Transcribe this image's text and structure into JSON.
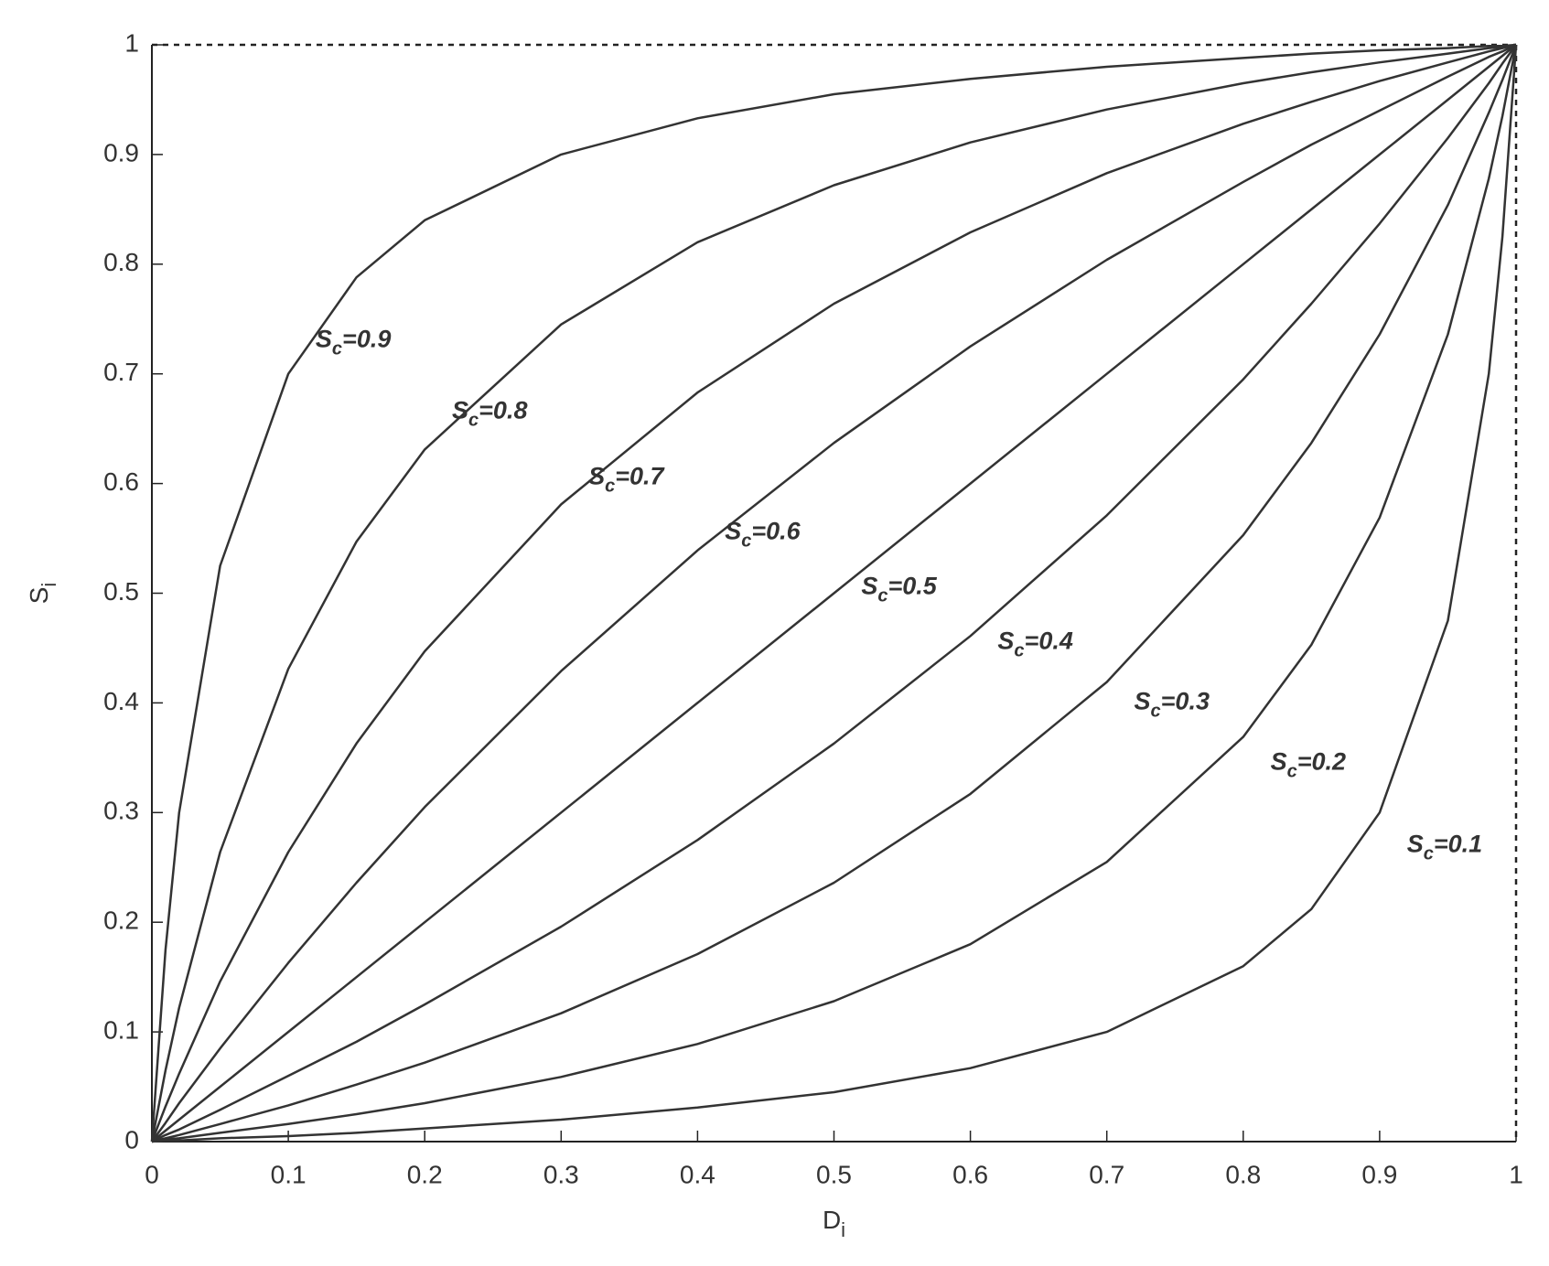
{
  "chart_data": {
    "type": "line",
    "xlabel": "Di",
    "ylabel": "Si",
    "x": [
      0,
      0.01,
      0.02,
      0.05,
      0.1,
      0.15,
      0.2,
      0.3,
      0.4,
      0.5,
      0.6,
      0.7,
      0.8,
      0.85,
      0.9,
      0.95,
      0.98,
      0.99,
      1
    ],
    "series": [
      {
        "name": "Sc=0.9",
        "color": "#333333",
        "values": [
          0,
          0.175,
          0.3,
          0.525,
          0.7,
          0.788,
          0.84,
          0.9,
          0.933,
          0.955,
          0.969,
          0.98,
          0.988,
          0.992,
          0.995,
          0.997,
          0.999,
          0.999,
          1
        ]
      },
      {
        "name": "Sc=0.8",
        "color": "#333333",
        "values": [
          0,
          0.065,
          0.122,
          0.264,
          0.431,
          0.547,
          0.631,
          0.745,
          0.82,
          0.872,
          0.911,
          0.941,
          0.965,
          0.975,
          0.984,
          0.992,
          0.997,
          0.998,
          1
        ]
      },
      {
        "name": "Sc=0.7",
        "color": "#333333",
        "values": [
          0,
          0.032,
          0.062,
          0.146,
          0.264,
          0.363,
          0.447,
          0.581,
          0.683,
          0.764,
          0.829,
          0.883,
          0.928,
          0.948,
          0.967,
          0.984,
          0.994,
          0.997,
          1
        ]
      },
      {
        "name": "Sc=0.6",
        "color": "#333333",
        "values": [
          0,
          0.017,
          0.035,
          0.085,
          0.163,
          0.236,
          0.305,
          0.429,
          0.539,
          0.637,
          0.725,
          0.804,
          0.875,
          0.909,
          0.94,
          0.971,
          0.989,
          0.994,
          1
        ]
      },
      {
        "name": "Sc=0.5",
        "color": "#333333",
        "values": [
          0,
          0.01,
          0.02,
          0.05,
          0.1,
          0.15,
          0.2,
          0.3,
          0.4,
          0.5,
          0.6,
          0.7,
          0.8,
          0.85,
          0.9,
          0.95,
          0.98,
          0.99,
          1
        ]
      },
      {
        "name": "Sc=0.4",
        "color": "#333333",
        "values": [
          0,
          0.006,
          0.011,
          0.029,
          0.06,
          0.091,
          0.125,
          0.196,
          0.275,
          0.363,
          0.461,
          0.571,
          0.695,
          0.764,
          0.837,
          0.915,
          0.965,
          0.983,
          1
        ]
      },
      {
        "name": "Sc=0.3",
        "color": "#333333",
        "values": [
          0,
          0.003,
          0.006,
          0.016,
          0.033,
          0.052,
          0.072,
          0.117,
          0.171,
          0.236,
          0.317,
          0.419,
          0.553,
          0.637,
          0.736,
          0.854,
          0.938,
          0.968,
          1
        ]
      },
      {
        "name": "Sc=0.2",
        "color": "#333333",
        "values": [
          0,
          0.002,
          0.003,
          0.008,
          0.016,
          0.025,
          0.035,
          0.059,
          0.089,
          0.128,
          0.18,
          0.255,
          0.369,
          0.453,
          0.569,
          0.736,
          0.878,
          0.935,
          1
        ]
      },
      {
        "name": "Sc=0.1",
        "color": "#333333",
        "values": [
          0,
          0.001,
          0.001,
          0.003,
          0.005,
          0.008,
          0.012,
          0.02,
          0.031,
          0.045,
          0.067,
          0.1,
          0.16,
          0.212,
          0.3,
          0.475,
          0.7,
          0.825,
          1
        ]
      }
    ],
    "xlim": [
      0,
      1
    ],
    "ylim": [
      0,
      1
    ],
    "xticks": [
      0,
      0.1,
      0.2,
      0.3,
      0.4,
      0.5,
      0.6,
      0.7,
      0.8,
      0.9,
      1
    ],
    "yticks": [
      0,
      0.1,
      0.2,
      0.3,
      0.4,
      0.5,
      0.6,
      0.7,
      0.8,
      0.9,
      1
    ],
    "grid": false
  }
}
